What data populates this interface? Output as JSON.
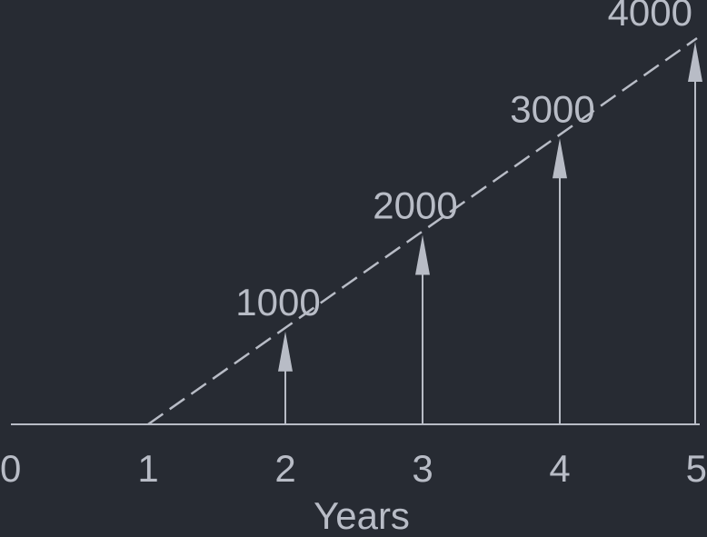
{
  "colors": {
    "background": "#272b33",
    "foreground": "#b8bcc6"
  },
  "chart_data": {
    "type": "line",
    "xlabel": "Years",
    "ticks": [
      "0",
      "1",
      "2",
      "3",
      "4",
      "5"
    ],
    "line": {
      "style": "dashed",
      "from": [
        1,
        0
      ],
      "to": [
        5,
        4000
      ]
    },
    "arrows": [
      {
        "x": 2,
        "value": 1000,
        "label": "1000"
      },
      {
        "x": 3,
        "value": 2000,
        "label": "2000"
      },
      {
        "x": 4,
        "value": 3000,
        "label": "3000"
      },
      {
        "x": 5,
        "value": 4000,
        "label": "4000"
      }
    ],
    "xlim": [
      0,
      5
    ],
    "ylim": [
      0,
      4000
    ]
  }
}
